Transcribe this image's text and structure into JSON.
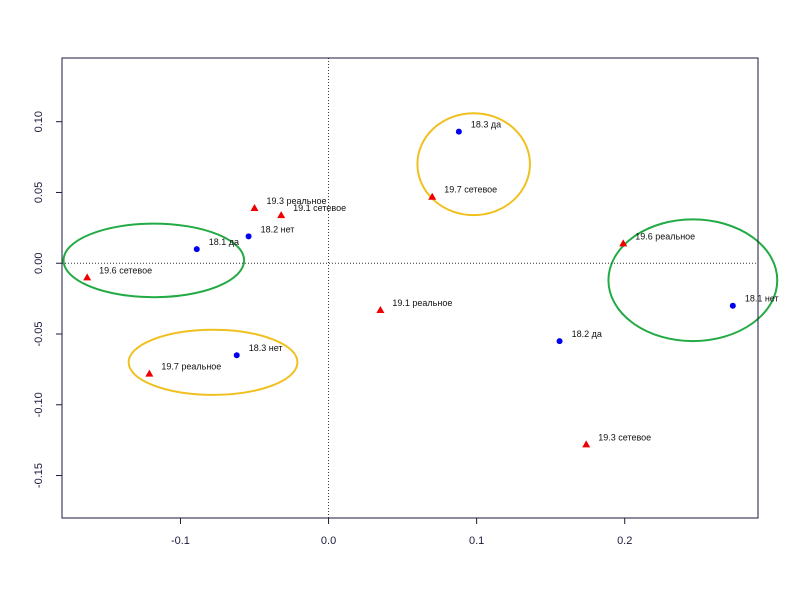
{
  "chart_data": {
    "type": "scatter",
    "title": "",
    "xlabel": "",
    "ylabel": "",
    "xlim": [
      -0.18,
      0.29
    ],
    "ylim": [
      -0.18,
      0.145
    ],
    "x_ticks": [
      {
        "value": -0.1,
        "label": "-0.1"
      },
      {
        "value": 0.0,
        "label": "0.0"
      },
      {
        "value": 0.1,
        "label": "0.1"
      },
      {
        "value": 0.2,
        "label": "0.2"
      }
    ],
    "y_ticks": [
      {
        "value": 0.1,
        "label": "0.10"
      },
      {
        "value": 0.05,
        "label": "0.05"
      },
      {
        "value": 0.0,
        "label": "0.00"
      },
      {
        "value": -0.05,
        "label": "-0.05"
      },
      {
        "value": -0.1,
        "label": "-0.10"
      },
      {
        "value": -0.15,
        "label": "-0.15"
      }
    ],
    "reference_lines": {
      "x": 0.0,
      "y": 0.0
    },
    "series": [
      {
        "name": "variant-a",
        "marker": "circle",
        "color": "#0000ee",
        "points": [
          {
            "x": 0.088,
            "y": 0.093,
            "label": "18.3 да"
          },
          {
            "x": -0.054,
            "y": 0.019,
            "label": "18.2 нет"
          },
          {
            "x": -0.089,
            "y": 0.01,
            "label": "18.1 да"
          },
          {
            "x": -0.062,
            "y": -0.065,
            "label": "18.3 нет"
          },
          {
            "x": 0.156,
            "y": -0.055,
            "label": "18.2 да"
          },
          {
            "x": 0.273,
            "y": -0.03,
            "label": "18.1 нет"
          }
        ]
      },
      {
        "name": "variant-b",
        "marker": "triangle",
        "color": "#ee0000",
        "points": [
          {
            "x": -0.05,
            "y": 0.039,
            "label": "19.3 реальное"
          },
          {
            "x": -0.032,
            "y": 0.034,
            "label": "19.1 сетевое"
          },
          {
            "x": 0.07,
            "y": 0.047,
            "label": "19.7 сетевое"
          },
          {
            "x": -0.163,
            "y": -0.01,
            "label": "19.6 сетевое"
          },
          {
            "x": 0.199,
            "y": 0.014,
            "label": "19.6 реальное"
          },
          {
            "x": 0.035,
            "y": -0.033,
            "label": "19.1 реальное"
          },
          {
            "x": -0.121,
            "y": -0.078,
            "label": "19.7 реальное"
          },
          {
            "x": 0.174,
            "y": -0.128,
            "label": "19.3 сетевое"
          }
        ]
      }
    ],
    "annotations": [
      {
        "shape": "ellipse",
        "color": "#22aa44",
        "cx": -0.118,
        "cy": 0.002,
        "rx": 0.061,
        "ry": 0.026
      },
      {
        "shape": "ellipse",
        "color": "#f0c020",
        "cx": 0.098,
        "cy": 0.07,
        "rx": 0.038,
        "ry": 0.036
      },
      {
        "shape": "ellipse",
        "color": "#f0c020",
        "cx": -0.078,
        "cy": -0.07,
        "rx": 0.057,
        "ry": 0.023
      },
      {
        "shape": "ellipse",
        "color": "#22aa44",
        "cx": 0.246,
        "cy": -0.012,
        "rx": 0.057,
        "ry": 0.043
      }
    ]
  },
  "colors": {
    "axis": "#1a1a3a",
    "reference": "#333333"
  }
}
